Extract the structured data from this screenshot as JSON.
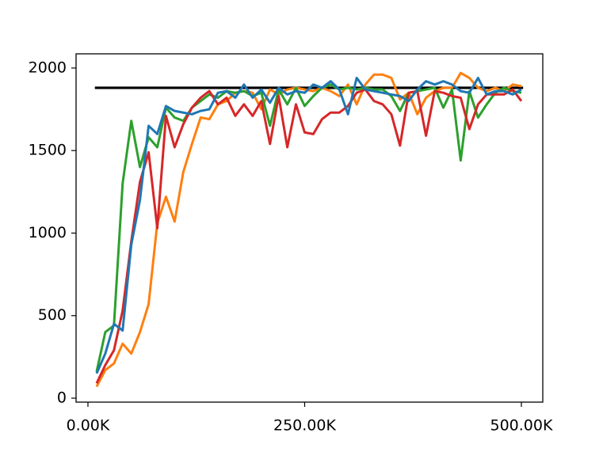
{
  "chart_data": {
    "type": "line",
    "x": [
      10000,
      20000,
      30000,
      40000,
      50000,
      60000,
      70000,
      80000,
      90000,
      100000,
      110000,
      120000,
      130000,
      140000,
      150000,
      160000,
      170000,
      180000,
      190000,
      200000,
      210000,
      220000,
      230000,
      240000,
      250000,
      260000,
      270000,
      280000,
      290000,
      300000,
      310000,
      320000,
      330000,
      340000,
      350000,
      360000,
      370000,
      380000,
      390000,
      400000,
      410000,
      420000,
      430000,
      440000,
      450000,
      460000,
      470000,
      480000,
      490000,
      500000
    ],
    "series": [
      {
        "color": "#ff7f0e",
        "values": [
          70,
          170,
          210,
          330,
          270,
          400,
          570,
          1060,
          1220,
          1070,
          1370,
          1540,
          1700,
          1690,
          1780,
          1800,
          1850,
          1860,
          1850,
          1750,
          1870,
          1840,
          1870,
          1880,
          1870,
          1860,
          1880,
          1860,
          1830,
          1900,
          1780,
          1900,
          1960,
          1960,
          1940,
          1810,
          1850,
          1720,
          1820,
          1860,
          1880,
          1880,
          1970,
          1940,
          1880,
          1860,
          1880,
          1860,
          1900,
          1890
        ]
      },
      {
        "color": "#2ca02c",
        "values": [
          160,
          400,
          440,
          1300,
          1680,
          1400,
          1580,
          1520,
          1760,
          1700,
          1680,
          1760,
          1800,
          1840,
          1820,
          1860,
          1850,
          1860,
          1830,
          1850,
          1650,
          1870,
          1780,
          1880,
          1770,
          1830,
          1880,
          1900,
          1870,
          1880,
          1870,
          1880,
          1870,
          1870,
          1830,
          1740,
          1850,
          1860,
          1870,
          1880,
          1760,
          1870,
          1440,
          1860,
          1700,
          1780,
          1850,
          1880,
          1860,
          1850
        ]
      },
      {
        "color": "#d62728",
        "values": [
          90,
          200,
          290,
          530,
          950,
          1310,
          1490,
          1030,
          1710,
          1520,
          1660,
          1760,
          1820,
          1860,
          1780,
          1820,
          1710,
          1780,
          1710,
          1800,
          1540,
          1830,
          1520,
          1780,
          1610,
          1600,
          1690,
          1730,
          1730,
          1770,
          1850,
          1870,
          1800,
          1780,
          1720,
          1530,
          1850,
          1860,
          1590,
          1860,
          1850,
          1830,
          1820,
          1630,
          1780,
          1840,
          1840,
          1840,
          1870,
          1800
        ]
      },
      {
        "color": "#1f77b4",
        "values": [
          150,
          270,
          450,
          410,
          930,
          1200,
          1650,
          1600,
          1770,
          1740,
          1730,
          1720,
          1740,
          1750,
          1850,
          1860,
          1820,
          1900,
          1820,
          1870,
          1790,
          1880,
          1840,
          1860,
          1850,
          1900,
          1880,
          1920,
          1870,
          1720,
          1940,
          1870,
          1860,
          1850,
          1840,
          1830,
          1800,
          1870,
          1920,
          1900,
          1920,
          1900,
          1860,
          1850,
          1940,
          1840,
          1860,
          1860,
          1840,
          1870
        ]
      }
    ],
    "hline": {
      "value": 1880,
      "xmin": 8000,
      "xmax": 502000,
      "color": "#000000"
    },
    "xlim": [
      -13700,
      524700
    ],
    "xticks": [
      {
        "value": 0,
        "label": "0.00K"
      },
      {
        "value": 250000,
        "label": "250.00K"
      },
      {
        "value": 500000,
        "label": "500.00K"
      }
    ],
    "ylim": [
      -24,
      2086
    ],
    "yticks": [
      0,
      500,
      1000,
      1500,
      2000
    ]
  }
}
